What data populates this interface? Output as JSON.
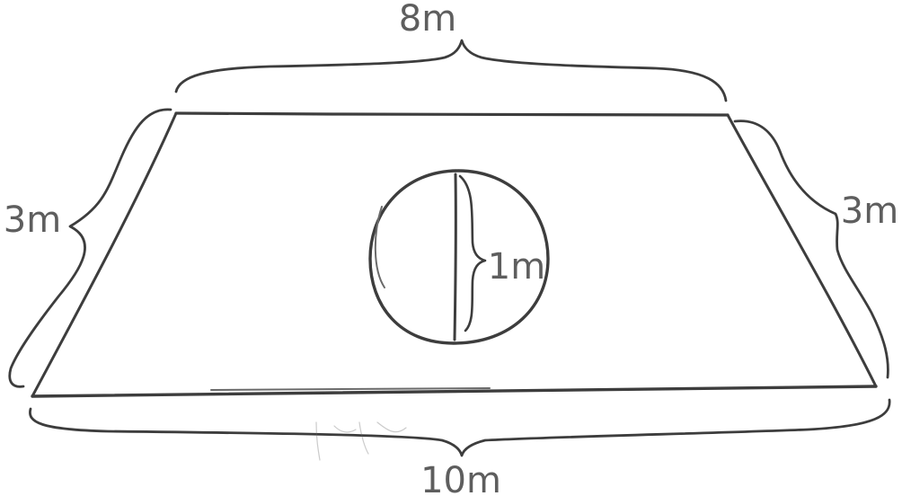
{
  "diagram": {
    "labels": {
      "top_base": "8m",
      "bottom_base": "10m",
      "left_side": "3m",
      "right_side": "3m",
      "hole_diameter": "1m"
    },
    "colors": {
      "ink": "#3d3d3d",
      "label": "#5e5e5e",
      "background": "#ffffff"
    }
  }
}
